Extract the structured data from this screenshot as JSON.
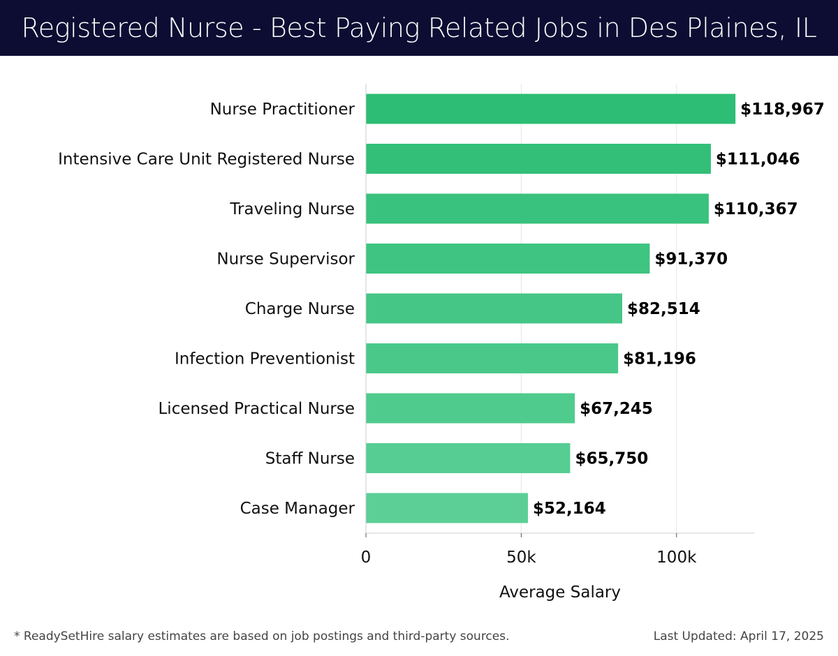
{
  "header": {
    "title": "Registered Nurse - Best Paying Related Jobs in Des Plaines, IL"
  },
  "colors": {
    "header_bg": "#0d0d33",
    "bar_top": "#2dbd74",
    "bar_bottom": "#5ccf97",
    "grid": "#e6e6e6",
    "axis": "#cccccc"
  },
  "chart_data": {
    "type": "bar",
    "orientation": "horizontal",
    "categories": [
      "Nurse Practitioner",
      "Intensive Care Unit Registered Nurse",
      "Traveling Nurse",
      "Nurse Supervisor",
      "Charge Nurse",
      "Infection Preventionist",
      "Licensed Practical Nurse",
      "Staff Nurse",
      "Case Manager"
    ],
    "values": [
      118967,
      111046,
      110367,
      91370,
      82514,
      81196,
      67245,
      65750,
      52164
    ],
    "value_labels": [
      "$118,967",
      "$111,046",
      "$110,367",
      "$91,370",
      "$82,514",
      "$81,196",
      "$67,245",
      "$65,750",
      "$52,164"
    ],
    "xlabel": "Average Salary",
    "ylabel": "",
    "xlim": [
      0,
      125000
    ],
    "xticks": [
      0,
      50000,
      100000
    ],
    "xtick_labels": [
      "0",
      "50k",
      "100k"
    ],
    "grid": true
  },
  "footer": {
    "footnote": "* ReadySetHire salary estimates are based on job postings and third-party sources.",
    "updated": "Last Updated: April 17, 2025"
  }
}
